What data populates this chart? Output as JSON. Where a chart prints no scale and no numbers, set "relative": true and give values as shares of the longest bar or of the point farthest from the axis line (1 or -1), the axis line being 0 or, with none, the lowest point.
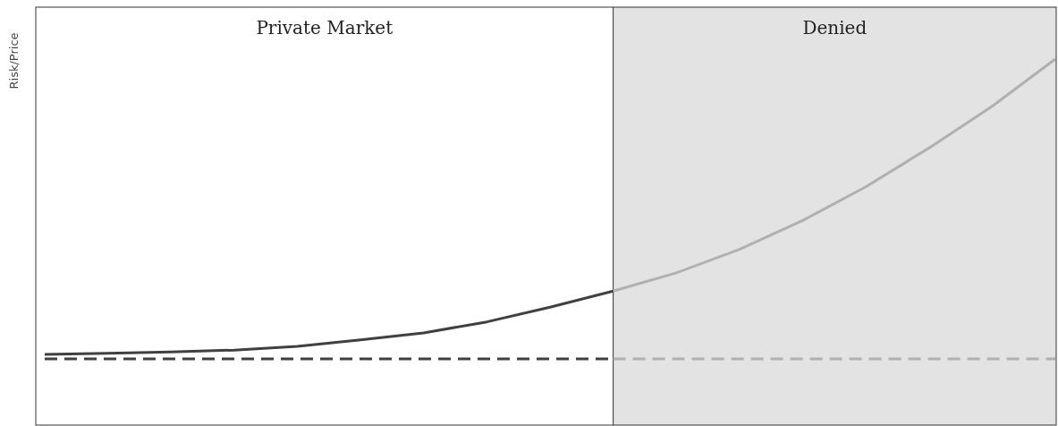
{
  "chart_data": {
    "type": "line",
    "relative": true,
    "ylabel": "Risk/Price",
    "annotations": [
      "Private Market",
      "Denied"
    ],
    "categories": [
      null,
      null,
      null,
      null,
      null,
      null,
      null,
      null,
      null,
      null,
      null,
      null,
      null,
      null,
      null,
      null,
      null
    ],
    "series": [
      {
        "color": "#404040",
        "line_style": "solid",
        "values": [
          0.193,
          0.196,
          0.2,
          0.205,
          0.215,
          0.233,
          0.252,
          0.282,
          0.322,
          0.366,
          null,
          null,
          null,
          null,
          null,
          null,
          null
        ]
      },
      {
        "color": "#b0b0b0",
        "line_style": "solid",
        "values": [
          null,
          null,
          null,
          null,
          null,
          null,
          null,
          null,
          null,
          0.366,
          0.416,
          0.48,
          0.559,
          0.651,
          0.757,
          0.871,
          1
        ]
      },
      {
        "color": "#404040",
        "line_style": "dashed",
        "values": [
          0.181,
          0.181,
          0.181,
          0.181,
          0.181,
          0.181,
          0.181,
          0.181,
          0.181,
          0.181,
          null,
          null,
          null,
          null,
          null,
          null,
          null
        ]
      },
      {
        "color": "#b0b0b0",
        "line_style": "dashed",
        "values": [
          null,
          null,
          null,
          null,
          null,
          null,
          null,
          null,
          null,
          0.181,
          0.181,
          0.181,
          0.181,
          0.181,
          0.181,
          0.181,
          0.181
        ]
      }
    ]
  }
}
